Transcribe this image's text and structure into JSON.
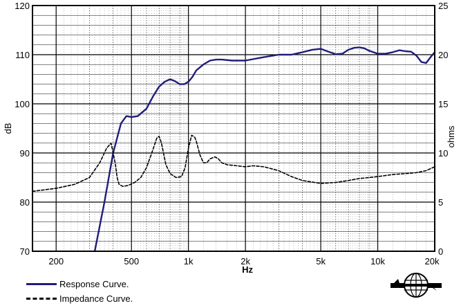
{
  "chart_data": {
    "type": "line",
    "xlabel": "Hz",
    "ylabel": "dB",
    "y2label": "ohms",
    "xscale": "log",
    "xlim": [
      150,
      20000
    ],
    "ylim": [
      70,
      120
    ],
    "y2lim": [
      0,
      25
    ],
    "grid": true,
    "x_ticks": [
      {
        "value": 200,
        "label": "200"
      },
      {
        "value": 500,
        "label": "500"
      },
      {
        "value": 1000,
        "label": "1k"
      },
      {
        "value": 2000,
        "label": "2k"
      },
      {
        "value": 5000,
        "label": "5k"
      },
      {
        "value": 10000,
        "label": "10k"
      },
      {
        "value": 20000,
        "label": "20k"
      }
    ],
    "y_ticks": [
      70,
      80,
      90,
      100,
      110,
      120
    ],
    "y2_ticks": [
      0,
      5,
      10,
      15,
      20,
      25
    ],
    "legend_position": "bottom-left",
    "series": [
      {
        "name": "Response Curve.",
        "axis": "left",
        "color": "#1f1d7a",
        "style": "solid",
        "x": [
          320,
          360,
          400,
          440,
          470,
          500,
          540,
          600,
          650,
          700,
          750,
          800,
          850,
          900,
          950,
          1000,
          1050,
          1100,
          1200,
          1300,
          1400,
          1500,
          1700,
          2000,
          2500,
          3000,
          3500,
          4000,
          4500,
          5000,
          5500,
          6000,
          6500,
          7000,
          7500,
          8000,
          8500,
          9000,
          10000,
          11000,
          12000,
          13000,
          14000,
          15000,
          16000,
          17000,
          18000,
          19000,
          20000
        ],
        "y": [
          70,
          80,
          90,
          96,
          97.5,
          97.3,
          97.5,
          99,
          101.5,
          103.5,
          104.5,
          105,
          104.6,
          104,
          104,
          104.5,
          105.5,
          106.8,
          108,
          108.8,
          109,
          109,
          108.8,
          108.8,
          109.5,
          110,
          110,
          110.5,
          111,
          111.2,
          110.6,
          110.1,
          110.2,
          111,
          111.4,
          111.5,
          111.3,
          110.8,
          110.2,
          110.2,
          110.5,
          110.9,
          110.7,
          110.6,
          109.8,
          108.5,
          108.3,
          109.5,
          110.5
        ]
      },
      {
        "name": "Impedance Curve.",
        "axis": "right",
        "color": "#000000",
        "style": "dashed",
        "x": [
          150,
          200,
          250,
          300,
          340,
          370,
          390,
          410,
          420,
          430,
          450,
          480,
          520,
          560,
          600,
          640,
          680,
          700,
          720,
          760,
          800,
          860,
          920,
          960,
          1000,
          1040,
          1080,
          1100,
          1150,
          1200,
          1250,
          1300,
          1380,
          1440,
          1500,
          1600,
          1800,
          2000,
          2200,
          2500,
          3000,
          3500,
          4000,
          5000,
          6000,
          7000,
          8000,
          9000,
          10000,
          12000,
          14000,
          16000,
          18000,
          20000
        ],
        "y": [
          6.1,
          6.4,
          6.8,
          7.5,
          9.0,
          10.5,
          11.0,
          9.0,
          7.5,
          6.8,
          6.6,
          6.7,
          7.0,
          7.5,
          8.5,
          10.0,
          11.5,
          11.7,
          11.0,
          8.8,
          7.9,
          7.5,
          7.6,
          8.5,
          10.5,
          11.8,
          11.6,
          11.2,
          9.8,
          9.0,
          9.0,
          9.4,
          9.6,
          9.4,
          9.0,
          8.8,
          8.7,
          8.6,
          8.7,
          8.6,
          8.2,
          7.6,
          7.2,
          6.9,
          7.0,
          7.2,
          7.4,
          7.5,
          7.6,
          7.8,
          7.9,
          8.0,
          8.2,
          8.6
        ]
      }
    ]
  }
}
